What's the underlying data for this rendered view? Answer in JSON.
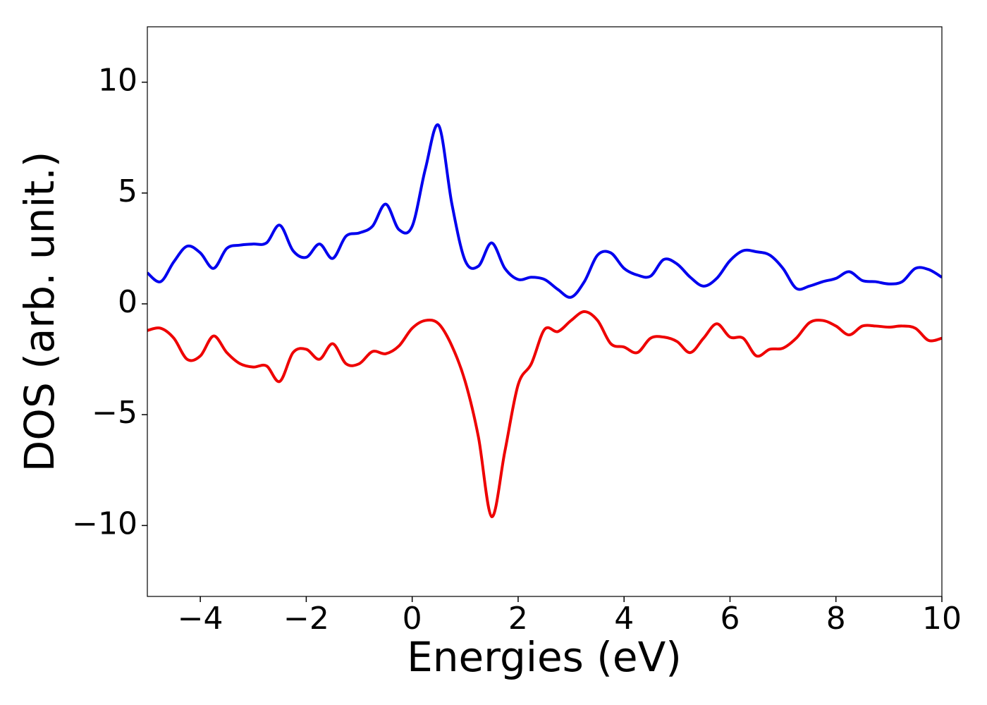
{
  "chart_data": {
    "type": "line",
    "xlabel": "Energies (eV)",
    "ylabel": "DOS (arb. unit.)",
    "x": [
      -5,
      -4.75,
      -4.5,
      -4.25,
      -4,
      -3.75,
      -3.5,
      -3.25,
      -3,
      -2.75,
      -2.5,
      -2.25,
      -2,
      -1.75,
      -1.5,
      -1.25,
      -1,
      -0.75,
      -0.5,
      -0.25,
      0,
      0.25,
      0.5,
      0.75,
      1,
      1.25,
      1.5,
      1.75,
      2,
      2.25,
      2.5,
      2.75,
      3,
      3.25,
      3.5,
      3.75,
      4,
      4.25,
      4.5,
      4.75,
      5,
      5.25,
      5.5,
      5.75,
      6,
      6.25,
      6.5,
      6.75,
      7,
      7.25,
      7.5,
      7.75,
      8,
      8.25,
      8.5,
      8.75,
      9,
      9.25,
      9.5,
      9.75,
      10
    ],
    "series": [
      {
        "color": "#0000ee",
        "values": [
          1.4,
          1.0,
          1.9,
          2.6,
          2.3,
          1.6,
          2.5,
          2.65,
          2.7,
          2.75,
          3.55,
          2.4,
          2.1,
          2.7,
          2.05,
          3.05,
          3.2,
          3.5,
          4.5,
          3.35,
          3.5,
          6.1,
          8.05,
          4.5,
          1.95,
          1.7,
          2.75,
          1.6,
          1.1,
          1.2,
          1.1,
          0.65,
          0.3,
          1.0,
          2.2,
          2.3,
          1.6,
          1.3,
          1.25,
          2.0,
          1.8,
          1.2,
          0.8,
          1.15,
          1.95,
          2.4,
          2.35,
          2.2,
          1.6,
          0.7,
          0.8,
          1.0,
          1.15,
          1.45,
          1.05,
          1.0,
          0.9,
          1.0,
          1.6,
          1.55,
          1.2
        ]
      },
      {
        "color": "#ee0000",
        "values": [
          -1.2,
          -1.1,
          -1.55,
          -2.5,
          -2.35,
          -1.45,
          -2.2,
          -2.7,
          -2.85,
          -2.8,
          -3.5,
          -2.2,
          -2.05,
          -2.5,
          -1.8,
          -2.7,
          -2.7,
          -2.15,
          -2.25,
          -1.9,
          -1.1,
          -0.75,
          -0.9,
          -1.9,
          -3.5,
          -6.0,
          -9.6,
          -6.65,
          -3.65,
          -2.7,
          -1.15,
          -1.25,
          -0.75,
          -0.35,
          -0.75,
          -1.8,
          -1.95,
          -2.2,
          -1.55,
          -1.5,
          -1.7,
          -2.2,
          -1.55,
          -0.9,
          -1.5,
          -1.55,
          -2.35,
          -2.05,
          -2.0,
          -1.55,
          -0.85,
          -0.75,
          -1.0,
          -1.4,
          -1.0,
          -1.0,
          -1.05,
          -1.0,
          -1.1,
          -1.65,
          -1.55
        ]
      }
    ],
    "xlim": [
      -5,
      10
    ],
    "xticks": [
      {
        "value": -4,
        "label": "−4"
      },
      {
        "value": -2,
        "label": "−2"
      },
      0,
      2,
      4,
      6,
      8,
      10
    ],
    "ylim": [
      -13.2,
      12.5
    ],
    "yticks": [
      {
        "value": -10,
        "label": "−10"
      },
      {
        "value": -5,
        "label": "−5"
      },
      0,
      5,
      10
    ]
  }
}
